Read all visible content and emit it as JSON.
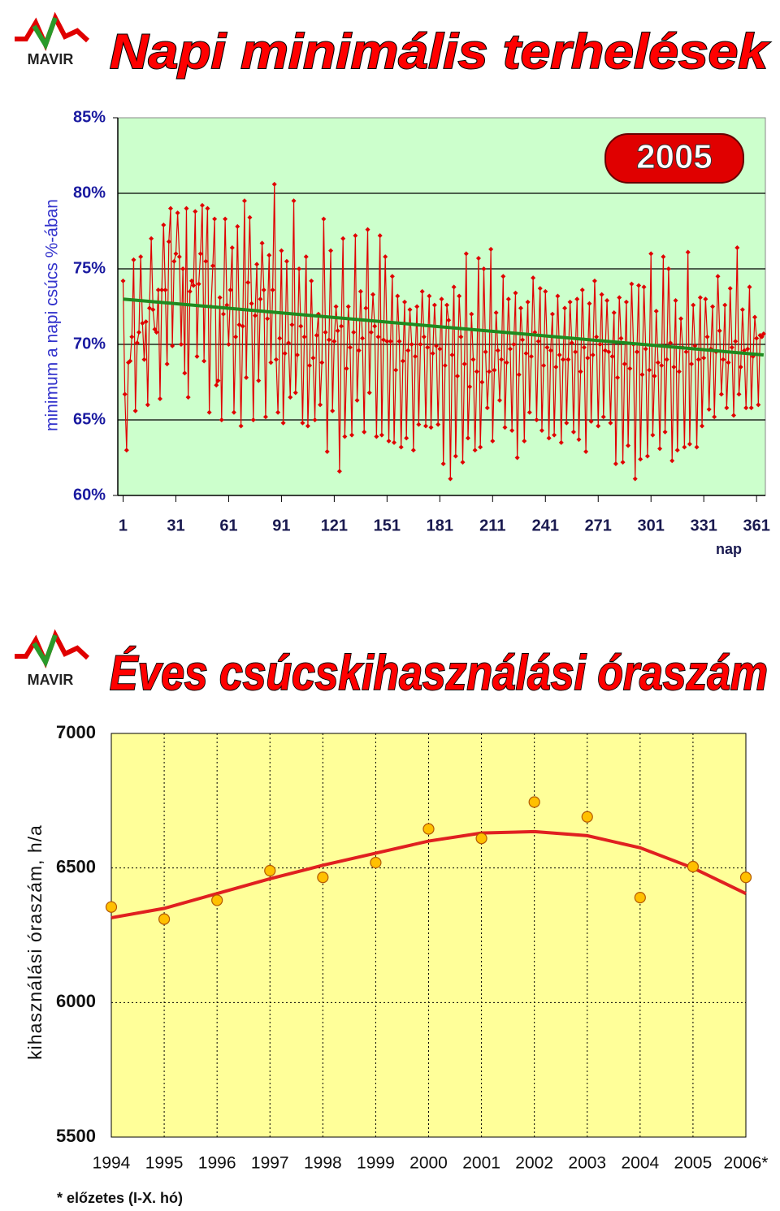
{
  "logo": "MAVIR",
  "chart_data": [
    {
      "type": "line",
      "title": "Napi minimális terhelések",
      "annotation": "2005",
      "y_label": "minimum a napi csúcs %-ában",
      "x_label": "nap",
      "xlim": [
        -2,
        366
      ],
      "xticks": [
        1,
        31,
        61,
        91,
        121,
        151,
        181,
        211,
        241,
        271,
        301,
        331,
        361
      ],
      "ylim": [
        60,
        85
      ],
      "yticks": [
        {
          "value": 60,
          "label": "60%"
        },
        {
          "value": 65,
          "label": "65%"
        },
        {
          "value": 70,
          "label": "70%"
        },
        {
          "value": 75,
          "label": "75%"
        },
        {
          "value": 80,
          "label": "80%"
        },
        {
          "value": 85,
          "label": "85%"
        }
      ],
      "grid": true,
      "background": "#ccffcc",
      "x": [
        1,
        2,
        3,
        4,
        5,
        6,
        7,
        8,
        9,
        10,
        11,
        12,
        13,
        14,
        15,
        16,
        17,
        18,
        19,
        20,
        21,
        22,
        23,
        24,
        25,
        26,
        27,
        28,
        29,
        30,
        31,
        32,
        33,
        34,
        35,
        36,
        37,
        38,
        39,
        40,
        41,
        42,
        43,
        44,
        45,
        46,
        47,
        48,
        49,
        50,
        51,
        52,
        53,
        54,
        55,
        56,
        57,
        58,
        59,
        60,
        61,
        62,
        63,
        64,
        65,
        66,
        67,
        68,
        69,
        70,
        71,
        72,
        73,
        74,
        75,
        76,
        77,
        78,
        79,
        80,
        81,
        82,
        83,
        84,
        85,
        86,
        87,
        88,
        89,
        90,
        91,
        92,
        93,
        94,
        95,
        96,
        97,
        98,
        99,
        100,
        101,
        102,
        103,
        104,
        105,
        106,
        107,
        108,
        109,
        110,
        111,
        112,
        113,
        114,
        115,
        116,
        117,
        118,
        119,
        120,
        121,
        122,
        123,
        124,
        125,
        126,
        127,
        128,
        129,
        130,
        131,
        132,
        133,
        134,
        135,
        136,
        137,
        138,
        139,
        140,
        141,
        142,
        143,
        144,
        145,
        146,
        147,
        148,
        149,
        150,
        151,
        152,
        153,
        154,
        155,
        156,
        157,
        158,
        159,
        160,
        161,
        162,
        163,
        164,
        165,
        166,
        167,
        168,
        169,
        170,
        171,
        172,
        173,
        174,
        175,
        176,
        177,
        178,
        179,
        180,
        181,
        182,
        183,
        184,
        185,
        186,
        187,
        188,
        189,
        190,
        191,
        192,
        193,
        194,
        195,
        196,
        197,
        198,
        199,
        200,
        201,
        202,
        203,
        204,
        205,
        206,
        207,
        208,
        209,
        210,
        211,
        212,
        213,
        214,
        215,
        216,
        217,
        218,
        219,
        220,
        221,
        222,
        223,
        224,
        225,
        226,
        227,
        228,
        229,
        230,
        231,
        232,
        233,
        234,
        235,
        236,
        237,
        238,
        239,
        240,
        241,
        242,
        243,
        244,
        245,
        246,
        247,
        248,
        249,
        250,
        251,
        252,
        253,
        254,
        255,
        256,
        257,
        258,
        259,
        260,
        261,
        262,
        263,
        264,
        265,
        266,
        267,
        268,
        269,
        270,
        271,
        272,
        273,
        274,
        275,
        276,
        277,
        278,
        279,
        280,
        281,
        282,
        283,
        284,
        285,
        286,
        287,
        288,
        289,
        290,
        291,
        292,
        293,
        294,
        295,
        296,
        297,
        298,
        299,
        300,
        301,
        302,
        303,
        304,
        305,
        306,
        307,
        308,
        309,
        310,
        311,
        312,
        313,
        314,
        315,
        316,
        317,
        318,
        319,
        320,
        321,
        322,
        323,
        324,
        325,
        326,
        327,
        328,
        329,
        330,
        331,
        332,
        333,
        334,
        335,
        336,
        337,
        338,
        339,
        340,
        341,
        342,
        343,
        344,
        345,
        346,
        347,
        348,
        349,
        350,
        351,
        352,
        353,
        354,
        355,
        356,
        357,
        358,
        359,
        360,
        361,
        362,
        363,
        364,
        365
      ],
      "series": [
        {
          "color": "#e00000",
          "values": [
            74.2,
            66.7,
            63.0,
            68.8,
            68.9,
            70.5,
            75.6,
            65.6,
            70.1,
            70.8,
            75.8,
            71.4,
            69.0,
            71.5,
            66.0,
            72.4,
            77.0,
            72.3,
            71.0,
            70.8,
            73.6,
            66.4,
            73.6,
            77.9,
            73.6,
            68.7,
            76.8,
            79.0,
            69.9,
            75.5,
            76.0,
            78.7,
            75.8,
            70.0,
            75.0,
            68.1,
            79.0,
            66.5,
            73.5,
            74.2,
            73.9,
            78.8,
            69.2,
            74.0,
            76.0,
            79.2,
            68.9,
            75.5,
            79.0,
            65.5,
            72.5,
            75.2,
            78.3,
            67.3,
            67.6,
            73.1,
            65.0,
            72.0,
            78.3,
            72.6,
            70.0,
            73.6,
            76.4,
            65.5,
            70.5,
            77.8,
            71.3,
            64.6,
            71.2,
            79.5,
            67.8,
            74.1,
            78.4,
            72.7,
            65.0,
            71.9,
            75.3,
            67.6,
            73.0,
            76.7,
            73.6,
            65.2,
            71.7,
            75.9,
            68.8,
            73.6,
            80.6,
            69.0,
            65.5,
            70.4,
            76.2,
            64.8,
            69.4,
            75.5,
            70.1,
            66.5,
            71.3,
            79.5,
            66.8,
            69.3,
            75.0,
            71.2,
            64.8,
            70.5,
            75.8,
            64.6,
            68.6,
            74.2,
            69.1,
            65.0,
            70.6,
            72.0,
            66.0,
            68.8,
            78.3,
            70.8,
            62.9,
            70.3,
            76.2,
            65.6,
            70.2,
            72.5,
            70.9,
            61.6,
            71.2,
            77.0,
            63.9,
            68.4,
            72.5,
            69.8,
            64.0,
            70.8,
            77.2,
            66.3,
            69.6,
            73.5,
            70.4,
            64.2,
            72.4,
            77.6,
            66.8,
            70.8,
            73.3,
            71.2,
            63.9,
            70.5,
            77.2,
            64.0,
            70.3,
            75.8,
            70.2,
            63.6,
            70.2,
            74.5,
            63.5,
            68.3,
            73.2,
            70.2,
            63.2,
            68.9,
            72.8,
            63.8,
            69.6,
            72.3,
            70.0,
            63.0,
            69.2,
            72.5,
            64.7,
            70.0,
            73.5,
            70.5,
            64.6,
            69.8,
            73.2,
            64.5,
            69.4,
            72.6,
            69.9,
            64.7,
            69.7,
            73.0,
            62.1,
            68.6,
            72.6,
            71.6,
            61.1,
            69.3,
            73.8,
            62.6,
            67.9,
            73.2,
            70.5,
            62.2,
            68.7,
            76.0,
            63.8,
            67.2,
            72.0,
            69.0,
            63.0,
            68.2,
            75.7,
            63.2,
            67.5,
            75.0,
            69.5,
            65.8,
            68.2,
            76.3,
            63.6,
            68.3,
            72.1,
            69.6,
            66.3,
            69.0,
            74.5,
            64.5,
            68.8,
            73.0,
            69.7,
            64.3,
            70.0,
            73.4,
            62.5,
            68.0,
            72.4,
            70.3,
            63.6,
            69.4,
            72.8,
            65.5,
            69.2,
            74.4,
            70.8,
            65.0,
            70.2,
            73.7,
            64.3,
            68.6,
            73.5,
            69.8,
            63.8,
            69.6,
            72.0,
            64.0,
            68.5,
            73.2,
            69.3,
            63.5,
            69.0,
            72.4,
            64.8,
            69.0,
            72.8,
            70.1,
            64.2,
            69.5,
            73.0,
            63.7,
            68.2,
            73.6,
            69.8,
            62.9,
            69.1,
            72.7,
            64.9,
            69.3,
            74.2,
            70.5,
            64.6,
            70.0,
            73.3,
            65.2,
            69.6,
            72.9,
            69.5,
            64.8,
            69.2,
            72.1,
            62.1,
            67.8,
            73.1,
            70.4,
            62.2,
            68.7,
            72.8,
            63.3,
            68.4,
            74.0,
            70.0,
            61.1,
            69.5,
            73.9,
            62.4,
            68.0,
            73.8,
            69.7,
            62.6,
            68.3,
            76.0,
            64.0,
            67.9,
            72.2,
            68.8,
            63.1,
            68.6,
            75.8,
            64.2,
            69.0,
            75.0,
            70.1,
            62.3,
            68.5,
            72.9,
            63.0,
            68.2,
            71.7,
            69.8,
            63.2,
            69.5,
            76.1,
            63.4,
            68.7,
            72.6,
            69.9,
            63.2,
            69.0,
            73.1,
            64.6,
            69.1,
            73.0,
            70.5,
            65.7,
            69.7,
            72.5,
            65.2,
            69.5,
            74.5,
            70.9,
            66.7,
            69.0,
            72.6,
            65.8,
            68.8,
            73.7,
            69.8,
            65.3,
            70.2,
            76.4,
            66.7,
            68.5,
            72.3,
            69.6,
            65.8,
            69.7,
            73.8,
            65.8,
            69.2,
            71.8,
            70.4,
            66.0,
            70.6,
            70.5,
            70.7
          ]
        },
        {
          "color": "#1f8a1f",
          "x": [
            1,
            365
          ],
          "values": [
            73.0,
            69.3
          ]
        }
      ]
    },
    {
      "type": "scatter",
      "title": "Éves csúcskihasználási óraszám",
      "y_label": "kihasználási óraszám, h/a",
      "note": "* előzetes (I-X. hó)",
      "categories": [
        "1994",
        "1995",
        "1996",
        "1997",
        "1998",
        "1999",
        "2000",
        "2001",
        "2002",
        "2003",
        "2004",
        "2005",
        "2006*"
      ],
      "ylim": [
        5500,
        7000
      ],
      "yticks": [
        5500,
        6000,
        6500,
        7000
      ],
      "grid": true,
      "background": "#ffff99",
      "series": [
        {
          "type": "scatter",
          "color": "#ffc000",
          "values": [
            6355,
            6310,
            6380,
            6490,
            6465,
            6520,
            6645,
            6610,
            6745,
            6690,
            6390,
            6505,
            6465
          ]
        },
        {
          "type": "line",
          "color": "#e02020",
          "values": [
            6315,
            6350,
            6405,
            6460,
            6510,
            6555,
            6600,
            6630,
            6635,
            6620,
            6575,
            6500,
            6405
          ]
        }
      ]
    }
  ]
}
